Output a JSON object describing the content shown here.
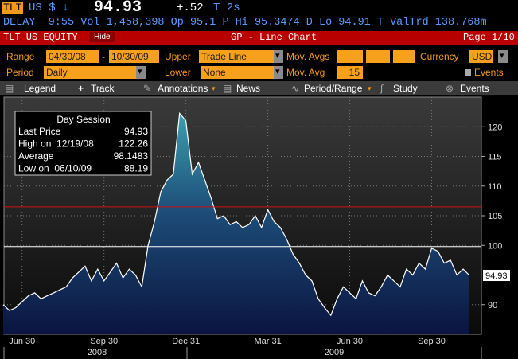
{
  "header": {
    "ticker": "TLT",
    "flags": "US $ ↓",
    "price": "94.93",
    "change": "+.52",
    "trade": "T 2s"
  },
  "quote_line": "DELAY  9:55 Vol 1,458,398 Op 95.1 P Hi 95.3474 D Lo 94.91 T ValTrd 138.768m",
  "title_bar": {
    "security": "TLT US EQUITY",
    "hide": "Hide",
    "function": "GP - Line Chart",
    "page": "Page 1/10"
  },
  "controls": {
    "range_label": "Range",
    "range_start": "04/30/08",
    "range_sep": "-",
    "range_end": "10/30/09",
    "upper_label": "Upper",
    "upper": "Trade Line",
    "mov_avgs_label": "Mov. Avgs",
    "currency_label": "Currency",
    "currency": "USD",
    "period_label": "Period",
    "period": "Daily",
    "lower_label": "Lower",
    "lower": "None",
    "mov_avg_label": "Mov. Avg",
    "mov_avg": "15",
    "events": "Events"
  },
  "toolbar": [
    "Legend",
    "Track",
    "Annotations",
    "News",
    "Period/Range",
    "Study",
    "Events"
  ],
  "chart_data": {
    "type": "line",
    "color": "#ffffff",
    "grid": true,
    "categories": [
      null,
      null,
      null,
      "Jun 30",
      null,
      null,
      null,
      null,
      null,
      null,
      null,
      null,
      null,
      null,
      null,
      null,
      "Sep 30",
      null,
      null,
      null,
      null,
      null,
      null,
      null,
      null,
      null,
      null,
      null,
      null,
      "Dec 31",
      null,
      null,
      null,
      null,
      null,
      null,
      null,
      null,
      null,
      null,
      null,
      null,
      "Mar 31",
      null,
      null,
      null,
      null,
      null,
      null,
      null,
      null,
      null,
      null,
      null,
      null,
      "Jun 30",
      null,
      null,
      null,
      null,
      null,
      null,
      null,
      null,
      null,
      null,
      null,
      null,
      "Sep 30",
      null,
      null,
      null,
      null,
      null,
      null
    ],
    "values": [
      90,
      89,
      89.5,
      90.5,
      91.5,
      92,
      91,
      91.5,
      92,
      92.5,
      93,
      94.5,
      95.5,
      96.5,
      94,
      96,
      94,
      95.5,
      97,
      94.5,
      96,
      95,
      93,
      100,
      104,
      109,
      111,
      112,
      122.26,
      121,
      112,
      114,
      111,
      108,
      104.5,
      105,
      103.5,
      104,
      103,
      103.5,
      105,
      103,
      106,
      104,
      103,
      101,
      98.5,
      97,
      95,
      94,
      91,
      89.5,
      88.19,
      91,
      93,
      92,
      91,
      94,
      92,
      91.5,
      93,
      95,
      94,
      93,
      96,
      95,
      97,
      96,
      99.5,
      99,
      97,
      97.5,
      95,
      96,
      94.93
    ],
    "year_labels": [
      "2008",
      "2009"
    ],
    "ylim": [
      85,
      125
    ],
    "yticks": [
      90,
      95,
      100,
      105,
      110,
      115,
      120
    ],
    "trade_lines": [
      {
        "value": 106.5,
        "color": "#d01010"
      },
      {
        "value": 99.8,
        "color": "#ffffff"
      }
    ],
    "last_price_tag": 94.93,
    "legend_box": {
      "title": "Day Session",
      "rows": [
        [
          "Last Price",
          94.93
        ],
        [
          "High on  12/19/08",
          122.26
        ],
        [
          "Average",
          98.1483
        ],
        [
          "Low on  06/10/09",
          88.19
        ]
      ]
    }
  }
}
